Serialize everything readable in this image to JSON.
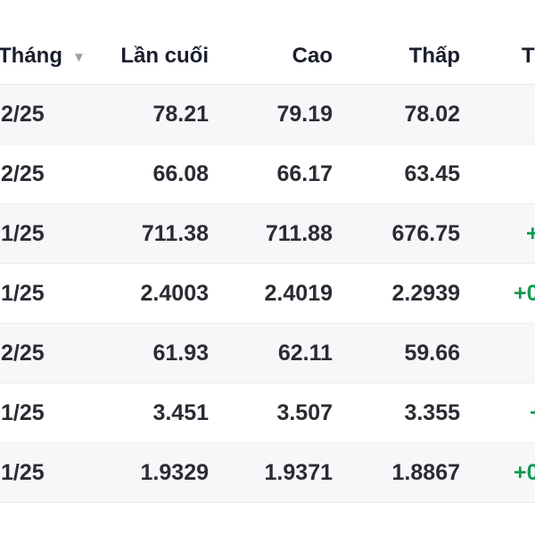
{
  "header": {
    "columns": {
      "month": "Tháng",
      "last": "Lần cuối",
      "high": "Cao",
      "low": "Thấp",
      "change": "T"
    },
    "sort": {
      "column": "month",
      "direction": "desc",
      "icon": "triangle-down-icon",
      "glyph": "▼"
    }
  },
  "table": {
    "rows": [
      {
        "month": "2/25",
        "last": "78.21",
        "high": "79.19",
        "low": "78.02",
        "change_fragment": ""
      },
      {
        "month": "2/25",
        "last": "66.08",
        "high": "66.17",
        "low": "63.45",
        "change_fragment": ""
      },
      {
        "month": "1/25",
        "last": "711.38",
        "high": "711.88",
        "low": "676.75",
        "change_fragment": "+"
      },
      {
        "month": "1/25",
        "last": "2.4003",
        "high": "2.4019",
        "low": "2.2939",
        "change_fragment": "+0"
      },
      {
        "month": "2/25",
        "last": "61.93",
        "high": "62.11",
        "low": "59.66",
        "change_fragment": ""
      },
      {
        "month": "1/25",
        "last": "3.451",
        "high": "3.507",
        "low": "3.355",
        "change_fragment": "+"
      },
      {
        "month": "1/25",
        "last": "1.9329",
        "high": "1.9371",
        "low": "1.8867",
        "change_fragment": "+0"
      }
    ]
  },
  "colors": {
    "positive": "#0f9b50",
    "row_shade": "#f7f7f9",
    "header_text": "#1b1e2e",
    "cell_text": "#2a2c34",
    "divider": "#ededf0",
    "sort_arrow": "#9b9ea6"
  }
}
